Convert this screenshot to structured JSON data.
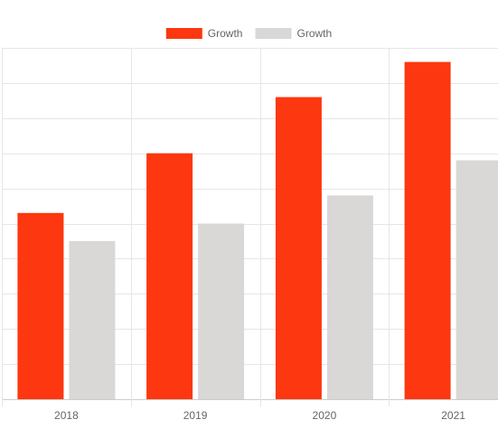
{
  "chart_data": {
    "type": "bar",
    "categories": [
      "2018",
      "2019",
      "2020",
      "2021"
    ],
    "series": [
      {
        "name": "Growth",
        "color": "#fd370f",
        "values": [
          5.3,
          7.0,
          8.6,
          9.6
        ]
      },
      {
        "name": "Growth",
        "color": "#d9d8d7",
        "values": [
          4.5,
          5.0,
          5.8,
          6.8
        ]
      }
    ],
    "title": "",
    "xlabel": "",
    "ylabel": "",
    "ylim": [
      0,
      10
    ],
    "grid": true,
    "legend": "top-center",
    "grid_color": "#e6e6e6"
  }
}
